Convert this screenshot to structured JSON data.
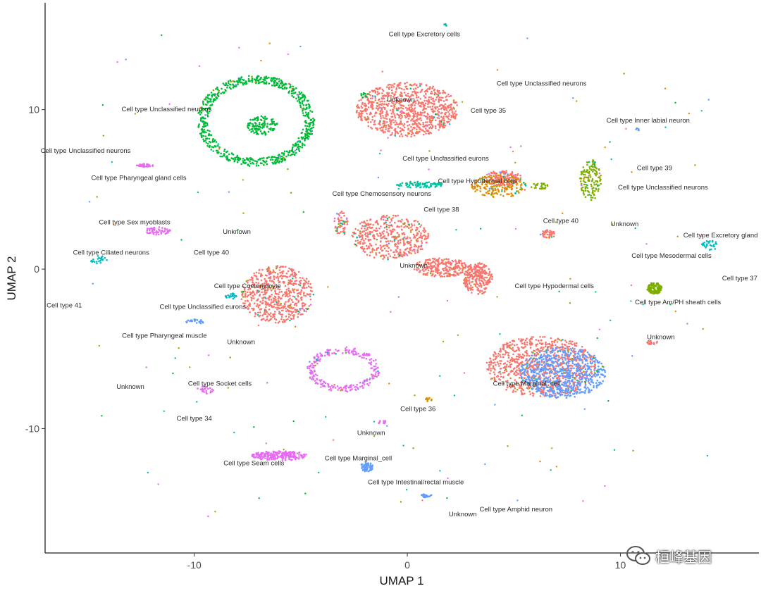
{
  "chart_data": {
    "type": "scatter",
    "title": "",
    "xlabel": "UMAP 1",
    "ylabel": "UMAP 2",
    "xlim": [
      -17,
      16.5
    ],
    "ylim": [
      -17.8,
      16.7
    ],
    "xticks": [
      -10,
      0,
      10
    ],
    "yticks": [
      -10,
      0,
      10
    ],
    "xtick_labels": [
      "-10",
      "0",
      "10"
    ],
    "ytick_labels": [
      "-10",
      "0",
      "10"
    ],
    "grid": false,
    "legend": "none",
    "colors": {
      "pink": "#f8766d",
      "green": "#00ba38",
      "blue": "#619cff",
      "magenta": "#e76bf3",
      "orange": "#de8c00",
      "olive": "#7cae00",
      "cyan": "#00bfc4",
      "teal": "#00c19f",
      "gold": "#b79f00"
    },
    "clusters": [
      {
        "shape": "blob",
        "cx": 0,
        "cy": 10,
        "rx": 2.4,
        "ry": 1.7,
        "color": "pink",
        "n": 900,
        "mix": 0.05
      },
      {
        "shape": "ring",
        "cx": -7.1,
        "cy": 9.3,
        "rx": 2.5,
        "ry": 2.6,
        "width": 0.25,
        "color": "green",
        "n": 700,
        "mix": 0.05
      },
      {
        "shape": "blob",
        "cx": -6.8,
        "cy": 9.0,
        "rx": 0.7,
        "ry": 0.6,
        "color": "green",
        "n": 120,
        "mix": 0.0
      },
      {
        "shape": "blob",
        "cx": 6.3,
        "cy": -6.1,
        "rx": 2.6,
        "ry": 1.9,
        "color": "pink",
        "n": 900,
        "mix": 0.04
      },
      {
        "shape": "blob",
        "cx": 7.3,
        "cy": -6.5,
        "rx": 2.0,
        "ry": 1.6,
        "color": "blue",
        "n": 700,
        "mix": 0.02
      },
      {
        "shape": "blob",
        "cx": -6.1,
        "cy": -1.6,
        "rx": 1.7,
        "ry": 1.8,
        "color": "pink",
        "n": 600,
        "mix": 0.06
      },
      {
        "shape": "blob",
        "cx": -0.8,
        "cy": 2.0,
        "rx": 1.8,
        "ry": 1.4,
        "color": "pink",
        "n": 450,
        "mix": 0.08
      },
      {
        "shape": "blob",
        "cx": 1.6,
        "cy": 0.1,
        "rx": 1.3,
        "ry": 0.6,
        "color": "pink",
        "n": 250,
        "mix": 0.03
      },
      {
        "shape": "blob",
        "cx": 3.3,
        "cy": -0.6,
        "rx": 0.7,
        "ry": 1.0,
        "color": "pink",
        "n": 250,
        "mix": 0.03
      },
      {
        "shape": "ring",
        "cx": -3.0,
        "cy": -6.3,
        "rx": 1.5,
        "ry": 1.2,
        "width": 0.2,
        "color": "magenta",
        "n": 250,
        "mix": 0.1
      },
      {
        "shape": "blob",
        "cx": -6.0,
        "cy": -11.7,
        "rx": 1.3,
        "ry": 0.3,
        "color": "magenta",
        "n": 220,
        "mix": 0.0
      },
      {
        "shape": "blob",
        "cx": 4.3,
        "cy": 5.2,
        "rx": 1.3,
        "ry": 0.7,
        "color": "orange",
        "n": 220,
        "mix": 0.2
      },
      {
        "shape": "blob",
        "cx": 4.5,
        "cy": 5.7,
        "rx": 0.9,
        "ry": 0.5,
        "color": "pink",
        "n": 120,
        "mix": 0.1
      },
      {
        "shape": "blob",
        "cx": 8.6,
        "cy": 5.6,
        "rx": 0.5,
        "ry": 1.3,
        "color": "olive",
        "n": 140,
        "mix": 0.2
      },
      {
        "shape": "blob",
        "cx": 11.6,
        "cy": -1.2,
        "rx": 0.35,
        "ry": 0.35,
        "color": "olive",
        "n": 120,
        "mix": 0.0
      },
      {
        "shape": "blob",
        "cx": 0.6,
        "cy": 5.3,
        "rx": 1.1,
        "ry": 0.2,
        "color": "teal",
        "n": 90,
        "mix": 0.0
      },
      {
        "shape": "blob",
        "cx": -12.3,
        "cy": 6.5,
        "rx": 0.4,
        "ry": 0.1,
        "color": "magenta",
        "n": 40,
        "mix": 0.0
      },
      {
        "shape": "blob",
        "cx": -11.7,
        "cy": 2.4,
        "rx": 0.6,
        "ry": 0.25,
        "color": "magenta",
        "n": 60,
        "mix": 0.0
      },
      {
        "shape": "blob",
        "cx": -14.5,
        "cy": 0.6,
        "rx": 0.4,
        "ry": 0.25,
        "color": "cyan",
        "n": 25,
        "mix": 0.0
      },
      {
        "shape": "blob",
        "cx": -10.0,
        "cy": -3.3,
        "rx": 0.5,
        "ry": 0.15,
        "color": "blue",
        "n": 25,
        "mix": 0.0
      },
      {
        "shape": "blob",
        "cx": -9.5,
        "cy": -7.6,
        "rx": 0.4,
        "ry": 0.25,
        "color": "magenta",
        "n": 25,
        "mix": 0.0
      },
      {
        "shape": "blob",
        "cx": -1.9,
        "cy": -12.4,
        "rx": 0.3,
        "ry": 0.3,
        "color": "blue",
        "n": 60,
        "mix": 0.0
      },
      {
        "shape": "blob",
        "cx": 0.9,
        "cy": -14.2,
        "rx": 0.25,
        "ry": 0.12,
        "color": "blue",
        "n": 25,
        "mix": 0.0
      },
      {
        "shape": "blob",
        "cx": 14.2,
        "cy": 1.5,
        "rx": 0.4,
        "ry": 0.3,
        "color": "cyan",
        "n": 30,
        "mix": 0.0
      },
      {
        "shape": "blob",
        "cx": 6.6,
        "cy": 2.2,
        "rx": 0.35,
        "ry": 0.25,
        "color": "pink",
        "n": 40,
        "mix": 0.1
      },
      {
        "shape": "blob",
        "cx": -3.1,
        "cy": 2.9,
        "rx": 0.35,
        "ry": 0.8,
        "color": "pink",
        "n": 60,
        "mix": 0.3
      },
      {
        "shape": "blob",
        "cx": -8.3,
        "cy": -1.7,
        "rx": 0.3,
        "ry": 0.2,
        "color": "cyan",
        "n": 25,
        "mix": 0.0
      },
      {
        "shape": "blob",
        "cx": 6.2,
        "cy": 5.2,
        "rx": 0.4,
        "ry": 0.2,
        "color": "olive",
        "n": 25,
        "mix": 0.0
      },
      {
        "shape": "blob",
        "cx": 11.5,
        "cy": -4.6,
        "rx": 0.25,
        "ry": 0.15,
        "color": "pink",
        "n": 20,
        "mix": 0.0
      },
      {
        "shape": "blob",
        "cx": -2.0,
        "cy": 10.9,
        "rx": 0.2,
        "ry": 0.2,
        "color": "green",
        "n": 10,
        "mix": 0.0
      },
      {
        "shape": "blob",
        "cx": 1.8,
        "cy": 15.3,
        "rx": 0.08,
        "ry": 0.08,
        "color": "teal",
        "n": 4,
        "mix": 0.0
      },
      {
        "shape": "blob",
        "cx": 10.8,
        "cy": 8.8,
        "rx": 0.12,
        "ry": 0.12,
        "color": "blue",
        "n": 6,
        "mix": 0.0
      },
      {
        "shape": "blob",
        "cx": -1.2,
        "cy": -9.6,
        "rx": 0.2,
        "ry": 0.15,
        "color": "magenta",
        "n": 12,
        "mix": 0.0
      },
      {
        "shape": "blob",
        "cx": 1.0,
        "cy": -8.2,
        "rx": 0.15,
        "ry": 0.15,
        "color": "orange",
        "n": 10,
        "mix": 0.0
      }
    ],
    "labels": [
      {
        "text": "Cell type Excretory cells",
        "x": 0.8,
        "y": 14.6
      },
      {
        "text": "Unknown",
        "x": -0.3,
        "y": 10.5
      },
      {
        "text": "Cell type Unclassified neurons",
        "x": 6.3,
        "y": 11.5
      },
      {
        "text": "Cell type 35",
        "x": 3.8,
        "y": 9.8
      },
      {
        "text": "Cell type Inner labial neuron",
        "x": 11.3,
        "y": 9.2
      },
      {
        "text": "Cell type Unclassified neurons",
        "x": -11.3,
        "y": 9.9
      },
      {
        "text": "Cell type Unclassified neurons",
        "x": -15.1,
        "y": 7.3
      },
      {
        "text": "Cell type Pharyngeal gland cells",
        "x": -12.6,
        "y": 5.6
      },
      {
        "text": "Cell type Unclassified eurons",
        "x": 1.8,
        "y": 6.8
      },
      {
        "text": "Cell type 39",
        "x": 11.6,
        "y": 6.2
      },
      {
        "text": "Cell type Hypodermal cells",
        "x": 3.3,
        "y": 5.4
      },
      {
        "text": "Cell type Unclassified neurons",
        "x": 12.0,
        "y": 5.0
      },
      {
        "text": "Cell type Chemosensory neurons",
        "x": -1.2,
        "y": 4.6
      },
      {
        "text": "Cell type 38",
        "x": 1.6,
        "y": 3.6
      },
      {
        "text": "Cell type Sex myoblasts",
        "x": -12.8,
        "y": 2.8
      },
      {
        "text": "Cell type 40",
        "x": 7.2,
        "y": 2.9
      },
      {
        "text": "Unknown",
        "x": 10.2,
        "y": 2.7
      },
      {
        "text": "Unknown",
        "x": -8.0,
        "y": 2.2
      },
      {
        "text": "Cell type Excretory gland",
        "x": 14.7,
        "y": 2.0
      },
      {
        "text": "Cell type Ciliated neurons",
        "x": -13.9,
        "y": 0.9
      },
      {
        "text": "Cell type 40",
        "x": -9.2,
        "y": 0.9
      },
      {
        "text": "Cell type Mesodermal cells",
        "x": 12.4,
        "y": 0.7
      },
      {
        "text": "Unknown",
        "x": 0.3,
        "y": 0.1
      },
      {
        "text": "Cell type 37",
        "x": 15.6,
        "y": -0.7
      },
      {
        "text": "Cell type Coelomocyte",
        "x": -7.5,
        "y": -1.2
      },
      {
        "text": "Cell type Hypodermal cells",
        "x": 6.9,
        "y": -1.2
      },
      {
        "text": "Cell type 41",
        "x": -16.1,
        "y": -2.4
      },
      {
        "text": "Cell type Am/PH sheath cells",
        "x": 12.7,
        "y": -2.2
      },
      {
        "text": "Cell type Unclassified eurons",
        "x": -9.6,
        "y": -2.5
      },
      {
        "text": "Cell type Pharyngeal muscle",
        "x": -11.4,
        "y": -4.3
      },
      {
        "text": "Unknown",
        "x": 11.9,
        "y": -4.4
      },
      {
        "text": "Unknown",
        "x": -7.8,
        "y": -4.7
      },
      {
        "text": "Cell type Socket cells",
        "x": -8.8,
        "y": -7.3
      },
      {
        "text": "Cell type Marginal_cell",
        "x": 5.6,
        "y": -7.3
      },
      {
        "text": "Unknown",
        "x": -13.0,
        "y": -7.5
      },
      {
        "text": "Cell type 36",
        "x": 0.5,
        "y": -8.9
      },
      {
        "text": "Cell type 34",
        "x": -10.0,
        "y": -9.5
      },
      {
        "text": "Unknown",
        "x": -1.7,
        "y": -10.4
      },
      {
        "text": "Cell type Marginal_cell",
        "x": -2.3,
        "y": -12.0
      },
      {
        "text": "Cell type Seam cells",
        "x": -7.2,
        "y": -12.3
      },
      {
        "text": "Cell type Intestinal/rectal muscle",
        "x": 0.4,
        "y": -13.5
      },
      {
        "text": "Cell type Amphid neuron",
        "x": 5.1,
        "y": -15.2
      },
      {
        "text": "Unknown",
        "x": 2.6,
        "y": -15.5
      }
    ]
  },
  "watermark": {
    "text": "桓峰基因",
    "icon": "wechat-icon"
  }
}
